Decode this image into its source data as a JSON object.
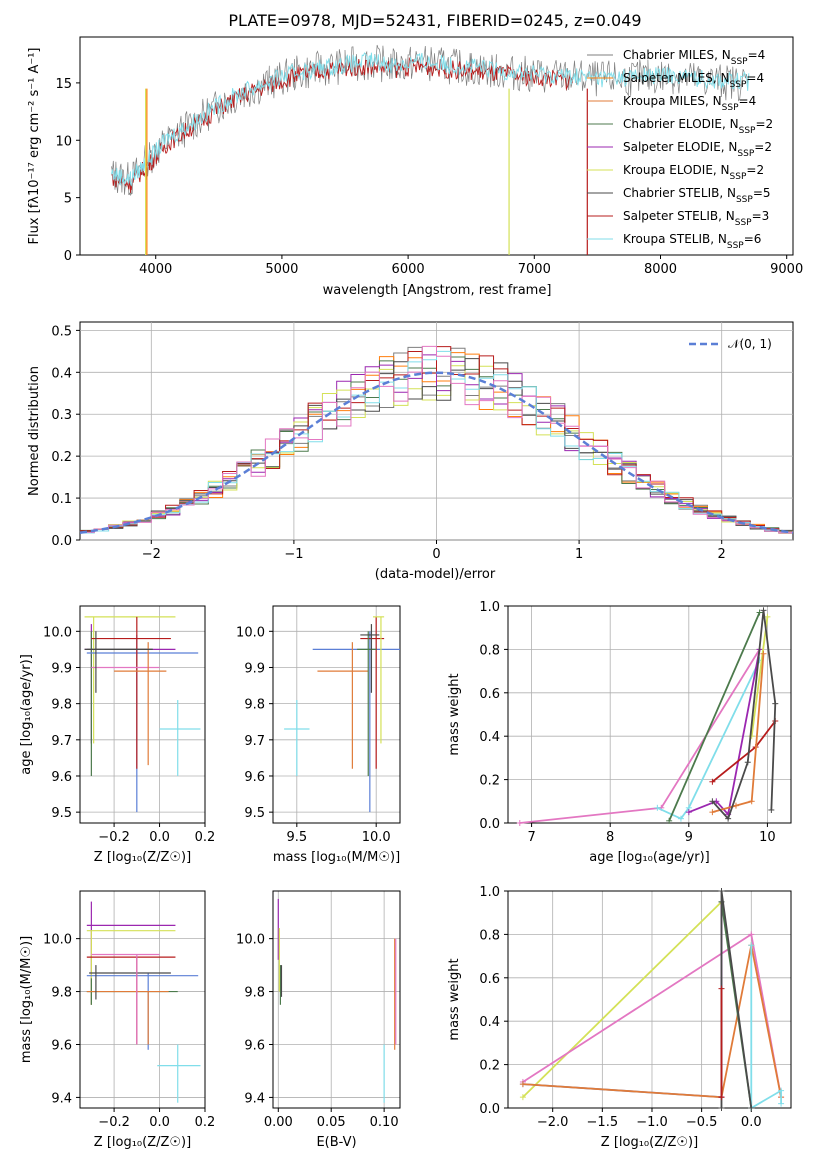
{
  "title": "PLATE=0978, MJD=52431, FIBERID=0245, z=0.049",
  "colors": {
    "Chabrier MILES": "#7f7f7f",
    "Salpeter MILES": "#ff7f0e",
    "Kroupa MILES": "#e07b39",
    "Chabrier ELODIE": "#4c7a4c",
    "Salpeter ELODIE": "#9b27b0",
    "Kroupa ELODIE": "#d4e157",
    "Chabrier STELIB": "#4a4a4a",
    "Salpeter STELIB": "#b71c1c",
    "Kroupa STELIB": "#80deea",
    "pink": "#e377c2",
    "blue": "#5b7fd6"
  },
  "panels": {
    "spectrum": {
      "xlabel": "wavelength [Angstrom, rest frame]",
      "ylabel": "Flux [fλ10⁻¹⁷ erg cm⁻² s⁻¹ A⁻¹]",
      "xticks": [
        "4000",
        "5000",
        "6000",
        "7000",
        "8000",
        "9000"
      ],
      "yticks": [
        "0",
        "5",
        "10",
        "15"
      ],
      "legend": [
        {
          "label": "Chabrier MILES, N",
          "sub": "SSP",
          "suffix": "=4",
          "color": "#7f7f7f"
        },
        {
          "label": "Salpeter MILES, N",
          "sub": "SSP",
          "suffix": "=4",
          "color": "#ff7f0e"
        },
        {
          "label": "Kroupa MILES, N",
          "sub": "SSP",
          "suffix": "=4",
          "color": "#e07b39"
        },
        {
          "label": "Chabrier ELODIE, N",
          "sub": "SSP",
          "suffix": "=2",
          "color": "#4c7a4c"
        },
        {
          "label": "Salpeter ELODIE, N",
          "sub": "SSP",
          "suffix": "=2",
          "color": "#9b27b0"
        },
        {
          "label": "Kroupa ELODIE, N",
          "sub": "SSP",
          "suffix": "=2",
          "color": "#d4e157"
        },
        {
          "label": "Chabrier STELIB, N",
          "sub": "SSP",
          "suffix": "=5",
          "color": "#4a4a4a"
        },
        {
          "label": "Salpeter STELIB, N",
          "sub": "SSP",
          "suffix": "=3",
          "color": "#b71c1c"
        },
        {
          "label": "Kroupa STELIB, N",
          "sub": "SSP",
          "suffix": "=6",
          "color": "#80deea"
        }
      ]
    },
    "residuals": {
      "xlabel": "(data-model)/error",
      "ylabel": "Normed distribution",
      "xticks": [
        "−2",
        "−1",
        "0",
        "1",
        "2"
      ],
      "yticks": [
        "0.0",
        "0.1",
        "0.2",
        "0.3",
        "0.4",
        "0.5"
      ],
      "legend_label": "𝒩(0, 1)"
    },
    "z_age": {
      "xlabel": "Z [log₁₀(Z/Z☉)]",
      "ylabel": "age  [log₁₀(age/yr)]",
      "xticks": [
        "−0.2",
        "0.0",
        "0.2"
      ],
      "yticks": [
        "9.5",
        "9.6",
        "9.7",
        "9.8",
        "9.9",
        "10.0"
      ]
    },
    "mass_age": {
      "xlabel": "mass [log₁₀(M/M☉)]",
      "xticks": [
        "9.5",
        "10.0"
      ],
      "yticks": [
        "9.5",
        "9.6",
        "9.7",
        "9.8",
        "9.9",
        "10.0"
      ]
    },
    "age_weight": {
      "xlabel": "age  [log₁₀(age/yr)]",
      "ylabel": "mass weight",
      "xticks": [
        "7",
        "8",
        "9",
        "10"
      ],
      "yticks": [
        "0.0",
        "0.2",
        "0.4",
        "0.6",
        "0.8",
        "1.0"
      ]
    },
    "z_mass": {
      "xlabel": "Z [log₁₀(Z/Z☉)]",
      "ylabel": "mass [log₁₀(M/M☉)]",
      "xticks": [
        "−0.2",
        "0.0",
        "0.2"
      ],
      "yticks": [
        "9.4",
        "9.6",
        "9.8",
        "10.0"
      ]
    },
    "ebv_mass": {
      "xlabel": "E(B-V)",
      "xticks": [
        "0.00",
        "0.05",
        "0.10"
      ],
      "yticks": [
        "9.4",
        "9.6",
        "9.8",
        "10.0"
      ]
    },
    "z_weight": {
      "xlabel": "Z [log₁₀(Z/Z☉)]",
      "ylabel": "mass weight",
      "xticks": [
        "−2.0",
        "−1.5",
        "−1.0",
        "−0.5",
        "0.0"
      ],
      "yticks": [
        "0.0",
        "0.2",
        "0.4",
        "0.6",
        "0.8",
        "1.0"
      ]
    }
  },
  "chart_data": [
    {
      "type": "line",
      "title": "PLATE=0978, MJD=52431, FIBERID=0245, z=0.049",
      "xlabel": "wavelength [Angstrom, rest frame]",
      "ylabel": "Flux [fλ10⁻¹⁷ erg cm⁻² s⁻¹ A⁻¹]",
      "xlim": [
        3400,
        9050
      ],
      "ylim": [
        0,
        19
      ],
      "x": [
        3650,
        3800,
        3950,
        4100,
        4300,
        4500,
        4700,
        4900,
        5100,
        5300,
        5500,
        5700,
        5900,
        6100,
        6300,
        6500,
        6700,
        6900,
        7100,
        7300,
        7500,
        7700,
        7900,
        8100,
        8300,
        8500,
        8700
      ],
      "series": [
        {
          "name": "Chabrier MILES, NSSP=4",
          "values": [
            7.0,
            6.5,
            8.5,
            10.0,
            11.5,
            13.0,
            14.2,
            15.0,
            15.8,
            16.2,
            16.5,
            16.8,
            16.5,
            16.8,
            16.5,
            16.3,
            16.0,
            15.8,
            15.6,
            15.5,
            15.3,
            15.4,
            15.5,
            15.6,
            15.3,
            15.1,
            15.0
          ]
        },
        {
          "name": "Salpeter STELIB, NSSP=3",
          "values": [
            6.8,
            6.2,
            8.0,
            9.8,
            11.2,
            12.8,
            14.0,
            14.8,
            15.6,
            16.0,
            16.3,
            16.5,
            16.2,
            16.5,
            16.2,
            16.0,
            15.8,
            15.6,
            15.4,
            15.2,
            null,
            null,
            null,
            null,
            null,
            null,
            null
          ]
        },
        {
          "name": "Kroupa STELIB, NSSP=6",
          "values": [
            7.1,
            6.6,
            8.4,
            10.2,
            11.6,
            13.1,
            14.3,
            15.1,
            15.9,
            16.3,
            16.6,
            16.9,
            16.6,
            16.9,
            16.6,
            16.4,
            16.1,
            15.9,
            15.7,
            15.6,
            15.4,
            15.5,
            15.6,
            15.7,
            15.4,
            15.2,
            15.1
          ]
        }
      ]
    },
    {
      "type": "bar",
      "xlabel": "(data-model)/error",
      "ylabel": "Normed distribution",
      "xlim": [
        -2.5,
        2.5
      ],
      "ylim": [
        0,
        0.52
      ],
      "x": [
        -2.4,
        -2.2,
        -2.0,
        -1.8,
        -1.6,
        -1.4,
        -1.2,
        -1.0,
        -0.8,
        -0.6,
        -0.4,
        -0.2,
        0.0,
        0.2,
        0.4,
        0.6,
        0.8,
        1.0,
        1.2,
        1.4,
        1.6,
        1.8,
        2.0,
        2.2,
        2.4
      ],
      "series": [
        {
          "name": "𝒩(0, 1)",
          "values": [
            0.02,
            0.036,
            0.054,
            0.079,
            0.111,
            0.15,
            0.194,
            0.242,
            0.29,
            0.333,
            0.368,
            0.391,
            0.399,
            0.391,
            0.368,
            0.333,
            0.29,
            0.242,
            0.194,
            0.15,
            0.111,
            0.079,
            0.054,
            0.036,
            0.02
          ]
        }
      ]
    },
    {
      "type": "scatter",
      "xlabel": "Z [log₁₀(Z/Z☉)]",
      "ylabel": "age  [log₁₀(age/yr)]",
      "xlim": [
        -0.35,
        0.2
      ],
      "ylim": [
        9.47,
        10.07
      ],
      "points": [
        {
          "x": -0.3,
          "y": 9.95
        },
        {
          "x": -0.1,
          "y": 9.95
        },
        {
          "x": -0.05,
          "y": 9.94
        },
        {
          "x": -0.1,
          "y": 9.97
        },
        {
          "x": 0.08,
          "y": 9.73
        }
      ]
    },
    {
      "type": "scatter",
      "xlabel": "mass [log₁₀(M/M☉)]",
      "ylabel": "age  [log₁₀(age/yr)]",
      "xlim": [
        9.35,
        10.15
      ],
      "ylim": [
        9.47,
        10.07
      ],
      "points": [
        {
          "x": 9.95,
          "y": 9.95
        },
        {
          "x": 9.85,
          "y": 9.89
        },
        {
          "x": 10.0,
          "y": 9.98
        },
        {
          "x": 9.5,
          "y": 9.73
        }
      ]
    },
    {
      "type": "line",
      "xlabel": "age  [log₁₀(age/yr)]",
      "ylabel": "mass weight",
      "xlim": [
        6.7,
        10.3
      ],
      "ylim": [
        0,
        1
      ],
      "series": [
        {
          "name": "pink",
          "x": [
            6.85,
            8.65,
            9.9,
            10.0
          ],
          "values": [
            0.0,
            0.07,
            0.8,
            0.8
          ]
        },
        {
          "name": "red",
          "x": [
            9.3,
            9.85,
            10.1
          ],
          "values": [
            0.19,
            0.35,
            0.47
          ]
        }
      ]
    },
    {
      "type": "scatter",
      "xlabel": "Z [log₁₀(Z/Z☉)]",
      "ylabel": "mass [log₁₀(M/M☉)]",
      "xlim": [
        -0.35,
        0.2
      ],
      "ylim": [
        9.36,
        10.18
      ],
      "points": [
        {
          "x": -0.3,
          "y": 9.95
        },
        {
          "x": -0.1,
          "y": 9.93
        },
        {
          "x": -0.1,
          "y": 9.8
        },
        {
          "x": 0.08,
          "y": 9.52
        }
      ]
    },
    {
      "type": "scatter",
      "xlabel": "E(B-V)",
      "ylabel": "mass [log₁₀(M/M☉)]",
      "xlim": [
        -0.005,
        0.115
      ],
      "ylim": [
        9.36,
        10.18
      ],
      "points": [
        {
          "x": 0.0,
          "y": 9.9
        },
        {
          "x": 0.11,
          "y": 9.8
        },
        {
          "x": 0.1,
          "y": 9.5
        }
      ]
    },
    {
      "type": "line",
      "xlabel": "Z [log₁₀(Z/Z☉)]",
      "ylabel": "mass weight",
      "xlim": [
        -2.45,
        0.4
      ],
      "ylim": [
        0,
        1
      ],
      "series": [
        {
          "name": "yellow",
          "x": [
            -2.3,
            -0.3
          ],
          "values": [
            0.05,
            0.95
          ]
        },
        {
          "name": "pink",
          "x": [
            -2.3,
            0.0,
            0.3
          ],
          "values": [
            0.12,
            0.8,
            0.05
          ]
        }
      ]
    }
  ]
}
